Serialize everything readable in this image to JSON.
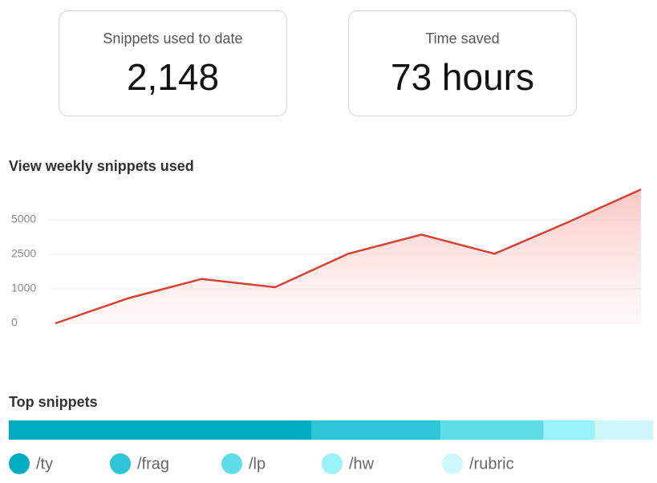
{
  "cards": [
    {
      "label": "Snippets used to date",
      "value": "2,148"
    },
    {
      "label": "Time saved",
      "value": "73 hours"
    }
  ],
  "chart_data": [
    {
      "type": "area",
      "title": "View weekly snippets used",
      "categories": [
        null,
        null,
        null,
        null,
        null,
        null,
        null,
        null,
        null
      ],
      "values": [
        0,
        730,
        1430,
        1070,
        2540,
        3930,
        2540,
        4820,
        7200
      ],
      "color": "#d84235",
      "ylim": [
        0,
        7200
      ],
      "yticks": [
        0,
        1000,
        2500,
        5000
      ],
      "y_scale": "even-ticks",
      "grid": true
    },
    {
      "type": "stacked-bar",
      "title": "Top snippets",
      "series": [
        {
          "name": "/ty",
          "color": "#00acc1",
          "values": [
            47
          ]
        },
        {
          "name": "/frag",
          "color": "#2ec6d7",
          "values": [
            20
          ]
        },
        {
          "name": "/lp",
          "color": "#5fdde9",
          "values": [
            16
          ]
        },
        {
          "name": "/hw",
          "color": "#9af2fb",
          "values": [
            8
          ]
        },
        {
          "name": "/rubric",
          "color": "#cdf7fb",
          "values": [
            9
          ]
        }
      ]
    }
  ]
}
